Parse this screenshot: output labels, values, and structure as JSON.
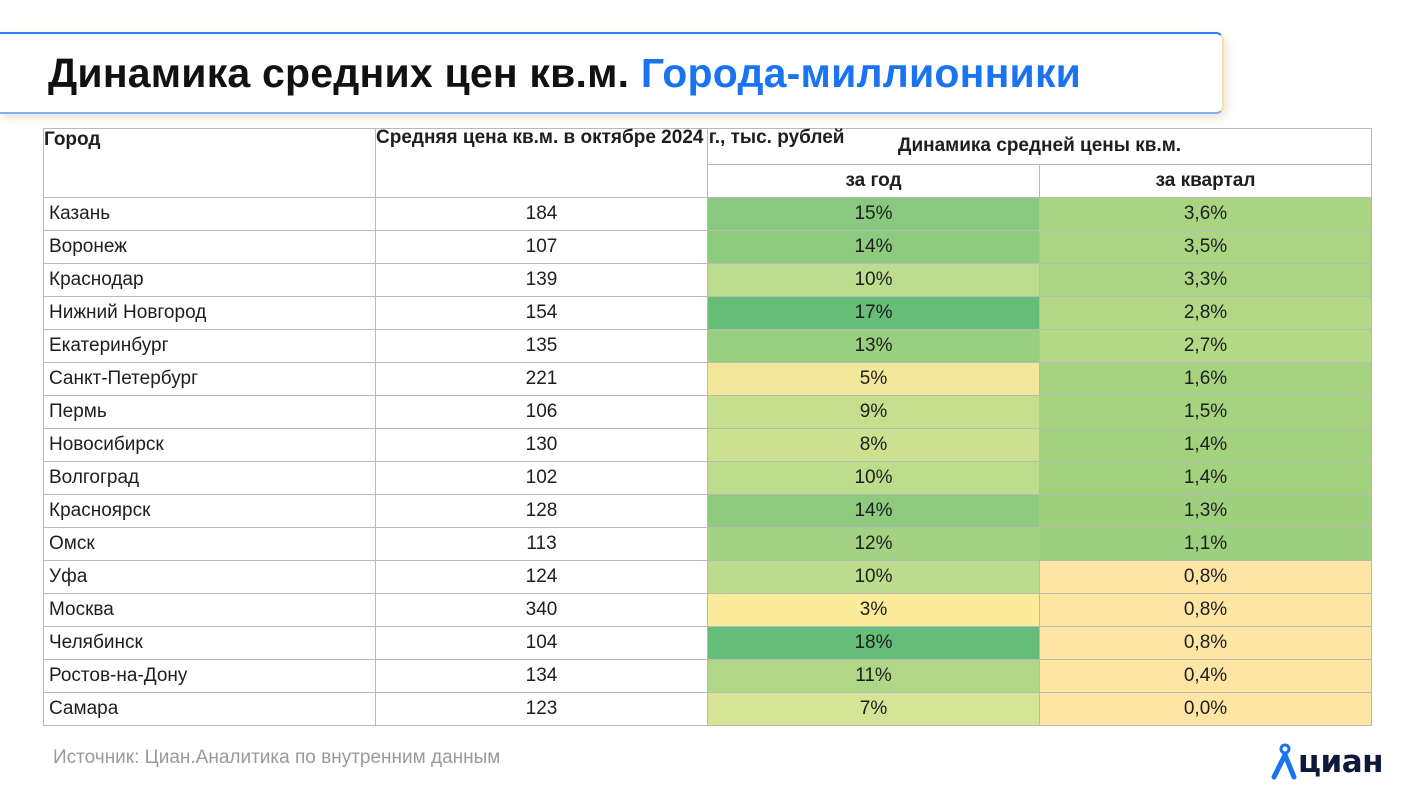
{
  "title": {
    "main": "Динамика средних цен кв.м.",
    "accent": "Города-миллионники"
  },
  "table": {
    "headers": {
      "city": "Город",
      "price": "Средняя цена кв.м. в октябре 2024 г., тыс. рублей",
      "dynamics": "Динамика средней цены кв.м.",
      "year": "за год",
      "quarter": "за квартал"
    },
    "rows": [
      {
        "city": "Казань",
        "price": "184",
        "year": "15%",
        "quarter": "3,6%",
        "year_color": "#88c97f",
        "quarter_color": "#a9d482"
      },
      {
        "city": "Воронеж",
        "price": "107",
        "year": "14%",
        "quarter": "3,5%",
        "year_color": "#8dcb7f",
        "quarter_color": "#abd583"
      },
      {
        "city": "Краснодар",
        "price": "139",
        "year": "10%",
        "quarter": "3,3%",
        "year_color": "#bcdc8e",
        "quarter_color": "#add684"
      },
      {
        "city": "Нижний Новгород",
        "price": "154",
        "year": "17%",
        "quarter": "2,8%",
        "year_color": "#67be79",
        "quarter_color": "#b2d885"
      },
      {
        "city": "Екатеринбург",
        "price": "135",
        "year": "13%",
        "quarter": "2,7%",
        "year_color": "#98cf81",
        "quarter_color": "#b3d886"
      },
      {
        "city": "Санкт-Петербург",
        "price": "221",
        "year": "5%",
        "quarter": "1,6%",
        "year_color": "#f3e79a",
        "quarter_color": "#a5d37f"
      },
      {
        "city": "Пермь",
        "price": "106",
        "year": "9%",
        "quarter": "1,5%",
        "year_color": "#c5df8f",
        "quarter_color": "#a6d37f"
      },
      {
        "city": "Новосибирск",
        "price": "130",
        "year": "8%",
        "quarter": "1,4%",
        "year_color": "#cbe190",
        "quarter_color": "#a3d27f"
      },
      {
        "city": "Волгоград",
        "price": "102",
        "year": "10%",
        "quarter": "1,4%",
        "year_color": "#bddd8d",
        "quarter_color": "#a3d27f"
      },
      {
        "city": "Красноярск",
        "price": "128",
        "year": "14%",
        "quarter": "1,3%",
        "year_color": "#8ecb7f",
        "quarter_color": "#9fd07e"
      },
      {
        "city": "Омск",
        "price": "113",
        "year": "12%",
        "quarter": "1,1%",
        "year_color": "#a3d283",
        "quarter_color": "#9ccf7e"
      },
      {
        "city": "Уфа",
        "price": "124",
        "year": "10%",
        "quarter": "0,8%",
        "year_color": "#bcdc8d",
        "quarter_color": "#fde6a3"
      },
      {
        "city": "Москва",
        "price": "340",
        "year": "3%",
        "quarter": "0,8%",
        "year_color": "#fdeb9c",
        "quarter_color": "#fde6a3"
      },
      {
        "city": "Челябинск",
        "price": "104",
        "year": "18%",
        "quarter": "0,8%",
        "year_color": "#64bd79",
        "quarter_color": "#fde6a3"
      },
      {
        "city": "Ростов-на-Дону",
        "price": "134",
        "year": "11%",
        "quarter": "0,4%",
        "year_color": "#afd787",
        "quarter_color": "#fde6a3"
      },
      {
        "city": "Самара",
        "price": "123",
        "year": "7%",
        "quarter": "0,0%",
        "year_color": "#d6e495",
        "quarter_color": "#fde6a3"
      }
    ]
  },
  "footer": {
    "source": "Источник: Циан.Аналитика по внутренним данным"
  },
  "logo": {
    "text": "циан",
    "mark_color": "#1a73f0",
    "text_color": "#0d1a3a"
  }
}
